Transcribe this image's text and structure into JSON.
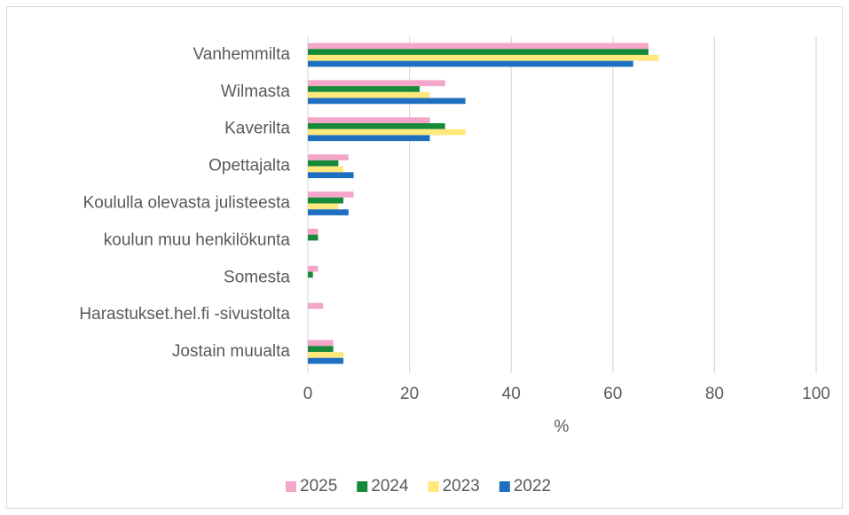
{
  "chart_data": {
    "type": "hbar",
    "categories": [
      "Vanhemmilta",
      "Wilmasta",
      "Kaverilta",
      "Opettajalta",
      "Koululla olevasta julisteesta",
      "koulun muu henkilökunta",
      "Somesta",
      "Harastukset.hel.fi -sivustolta",
      "Jostain muualta"
    ],
    "series": [
      {
        "name": "2025",
        "color": "#f4a6c8",
        "values": [
          67,
          27,
          24,
          8,
          9,
          2,
          2,
          3,
          5
        ]
      },
      {
        "name": "2024",
        "color": "#178a3a",
        "values": [
          67,
          22,
          27,
          6,
          7,
          2,
          1,
          0,
          5
        ]
      },
      {
        "name": "2023",
        "color": "#ffe87c",
        "values": [
          69,
          24,
          31,
          7,
          6,
          0,
          0,
          0,
          7
        ]
      },
      {
        "name": "2022",
        "color": "#1f6fc0",
        "values": [
          64,
          31,
          24,
          9,
          8,
          0,
          0,
          0,
          7
        ]
      }
    ],
    "xlabel": "%",
    "xlim": [
      0,
      100
    ],
    "xticks": [
      0,
      20,
      40,
      60,
      80,
      100
    ],
    "grid": true,
    "legend": "bottom"
  }
}
